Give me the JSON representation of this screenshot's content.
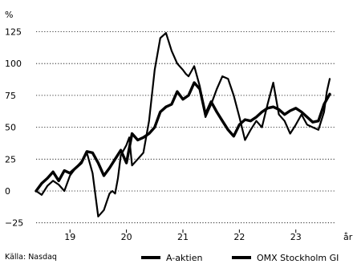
{
  "chart_data": {
    "type": "line",
    "ylabel": "%",
    "xlabel": "år",
    "source": "Källa: Nasdaq",
    "ylim": [
      -25,
      135
    ],
    "yticks": [
      -25,
      0,
      25,
      50,
      75,
      100,
      125
    ],
    "xlim": [
      2018.4,
      2023.7
    ],
    "xticks": [
      {
        "label": "19",
        "value": 2019.0
      },
      {
        "label": "20",
        "value": 2020.0
      },
      {
        "label": "21",
        "value": 2021.0
      },
      {
        "label": "22",
        "value": 2022.0
      },
      {
        "label": "23",
        "value": 2023.0
      }
    ],
    "grid": "horizontal",
    "legend": "bottom",
    "series": [
      {
        "name": "A-aktien",
        "x": [
          2018.4,
          2018.5,
          2018.6,
          2018.7,
          2018.8,
          2018.9,
          2019.0,
          2019.1,
          2019.2,
          2019.3,
          2019.4,
          2019.5,
          2019.6,
          2019.7,
          2019.75,
          2019.8,
          2019.85,
          2019.9,
          2020.0,
          2020.05,
          2020.1,
          2020.2,
          2020.3,
          2020.4,
          2020.5,
          2020.6,
          2020.7,
          2020.8,
          2020.9,
          2021.0,
          2021.05,
          2021.1,
          2021.2,
          2021.3,
          2021.4,
          2021.5,
          2021.6,
          2021.7,
          2021.8,
          2021.9,
          2022.0,
          2022.1,
          2022.2,
          2022.3,
          2022.4,
          2022.5,
          2022.6,
          2022.7,
          2022.8,
          2022.9,
          2023.0,
          2023.1,
          2023.2,
          2023.3,
          2023.4,
          2023.5,
          2023.55,
          2023.6
        ],
        "values": [
          0,
          -3,
          4,
          8,
          5,
          0,
          12,
          18,
          23,
          30,
          14,
          -20,
          -15,
          -2,
          0,
          -2,
          10,
          28,
          36,
          42,
          20,
          25,
          30,
          55,
          95,
          120,
          124,
          110,
          100,
          95,
          92,
          90,
          98,
          82,
          58,
          68,
          80,
          90,
          88,
          75,
          58,
          40,
          48,
          55,
          50,
          68,
          85,
          60,
          55,
          45,
          52,
          60,
          52,
          50,
          48,
          62,
          78,
          88
        ]
      },
      {
        "name": "OMX Stockholm GI",
        "x": [
          2018.4,
          2018.5,
          2018.6,
          2018.7,
          2018.8,
          2018.9,
          2019.0,
          2019.1,
          2019.2,
          2019.3,
          2019.4,
          2019.5,
          2019.6,
          2019.7,
          2019.8,
          2019.9,
          2020.0,
          2020.1,
          2020.2,
          2020.3,
          2020.4,
          2020.5,
          2020.6,
          2020.7,
          2020.8,
          2020.9,
          2021.0,
          2021.1,
          2021.2,
          2021.3,
          2021.4,
          2021.5,
          2021.6,
          2021.7,
          2021.8,
          2021.9,
          2022.0,
          2022.1,
          2022.2,
          2022.3,
          2022.4,
          2022.5,
          2022.6,
          2022.7,
          2022.8,
          2022.9,
          2023.0,
          2023.1,
          2023.2,
          2023.3,
          2023.4,
          2023.5,
          2023.6
        ],
        "values": [
          0,
          6,
          10,
          15,
          8,
          16,
          14,
          18,
          22,
          31,
          30,
          22,
          12,
          18,
          25,
          32,
          22,
          45,
          40,
          42,
          45,
          50,
          62,
          66,
          68,
          78,
          72,
          75,
          85,
          80,
          60,
          70,
          62,
          55,
          48,
          43,
          52,
          56,
          55,
          58,
          62,
          65,
          66,
          64,
          60,
          63,
          65,
          62,
          58,
          54,
          55,
          68,
          76
        ]
      }
    ]
  }
}
